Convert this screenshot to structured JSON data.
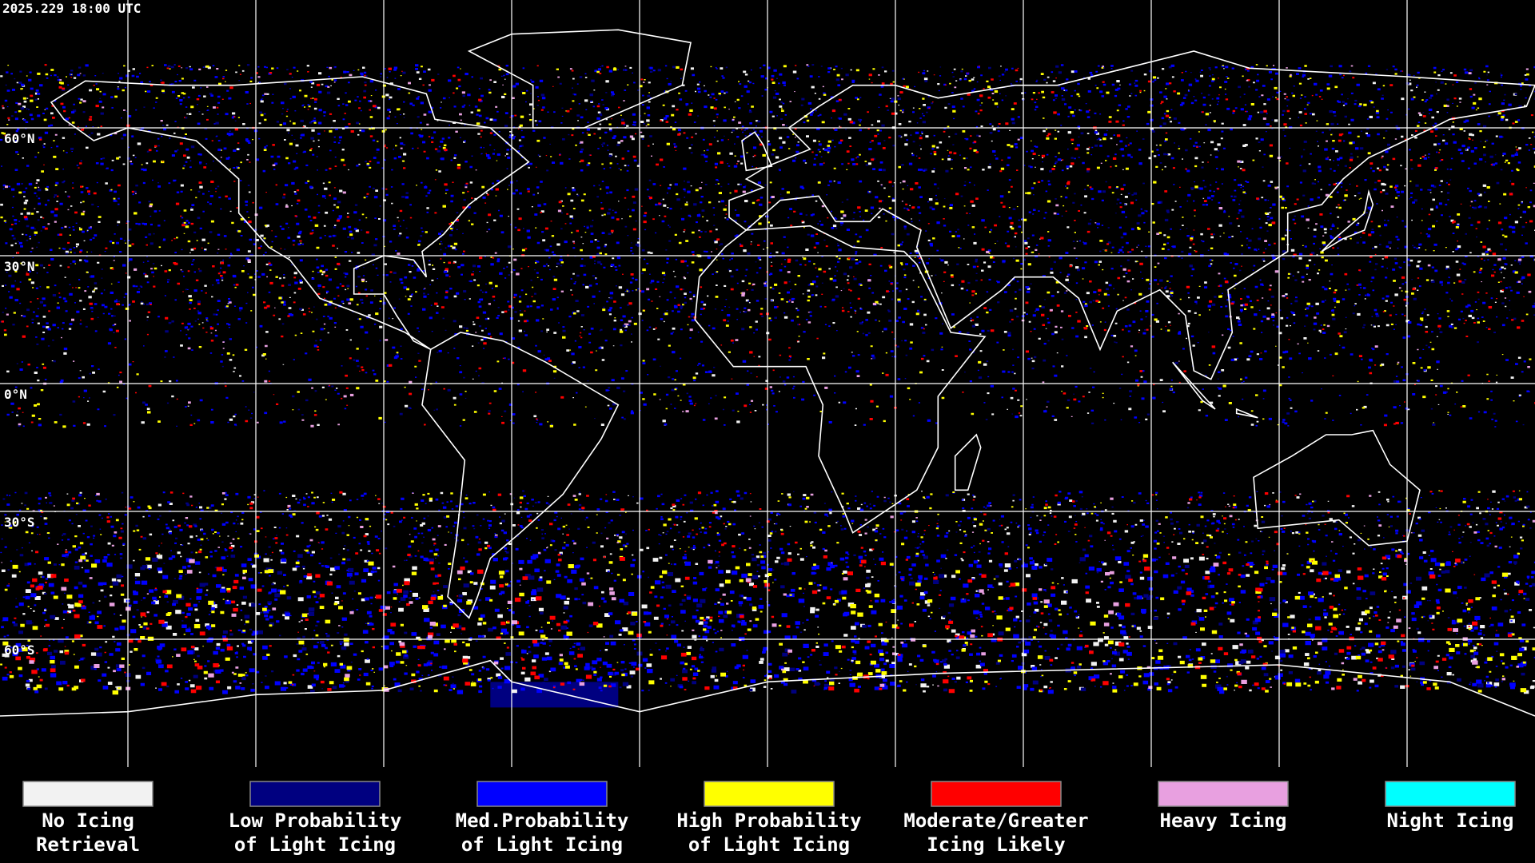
{
  "title": "2025.229 18:00 UTC",
  "latitude_labels": [
    "60°N",
    "30°N",
    "0°N",
    "30°S",
    "60°S"
  ],
  "legend": {
    "items": [
      {
        "label": [
          "No Icing",
          "Retrieval"
        ],
        "color": "#f2f2f2"
      },
      {
        "label": [
          "Low Probability",
          "of Light Icing"
        ],
        "color": "#000080"
      },
      {
        "label": [
          "Med.Probability",
          "of Light Icing"
        ],
        "color": "#0000ff"
      },
      {
        "label": [
          "High Probability",
          "of Light Icing"
        ],
        "color": "#ffff00"
      },
      {
        "label": [
          "Moderate/Greater",
          "Icing Likely"
        ],
        "color": "#ff0000"
      },
      {
        "label": [
          "Heavy Icing"
        ],
        "color": "#e8a0e0"
      },
      {
        "label": [
          "Night Icing"
        ],
        "color": "#00ffff"
      }
    ]
  }
}
